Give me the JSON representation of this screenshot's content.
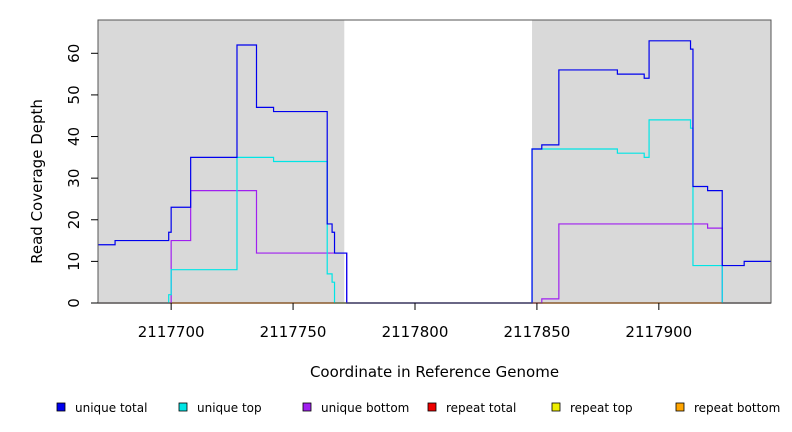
{
  "chart_data": {
    "type": "line",
    "step": true,
    "xlabel": "Coordinate in Reference Genome",
    "ylabel": "Read Coverage Depth",
    "xlim": [
      2117670,
      2117946
    ],
    "ylim": [
      0,
      68
    ],
    "x_ticks": [
      2117700,
      2117750,
      2117800,
      2117850,
      2117900
    ],
    "y_ticks": [
      0,
      10,
      20,
      30,
      40,
      50,
      60
    ],
    "grid": false,
    "shaded_regions": [
      {
        "x_start": 2117670,
        "x_end": 2117771,
        "color": "#d9d9d9"
      },
      {
        "x_start": 2117848,
        "x_end": 2117946,
        "color": "#d9d9d9"
      }
    ],
    "legend_position": "bottom",
    "series": [
      {
        "name": "unique total",
        "color": "#0000ee",
        "points": [
          [
            2117670,
            14
          ],
          [
            2117677,
            15
          ],
          [
            2117699,
            17
          ],
          [
            2117700,
            23
          ],
          [
            2117708,
            35
          ],
          [
            2117727,
            62
          ],
          [
            2117735,
            47
          ],
          [
            2117742,
            46
          ],
          [
            2117764,
            19
          ],
          [
            2117766,
            17
          ],
          [
            2117767,
            12
          ],
          [
            2117772,
            0
          ],
          [
            2117848,
            37
          ],
          [
            2117852,
            38
          ],
          [
            2117859,
            56
          ],
          [
            2117883,
            55
          ],
          [
            2117894,
            54
          ],
          [
            2117896,
            63
          ],
          [
            2117913,
            61
          ],
          [
            2117914,
            28
          ],
          [
            2117920,
            27
          ],
          [
            2117926,
            9
          ],
          [
            2117935,
            10
          ],
          [
            2117946,
            10
          ]
        ]
      },
      {
        "name": "unique top",
        "color": "#00e5e5",
        "points": [
          [
            2117670,
            0
          ],
          [
            2117699,
            2
          ],
          [
            2117700,
            8
          ],
          [
            2117727,
            35
          ],
          [
            2117742,
            34
          ],
          [
            2117764,
            7
          ],
          [
            2117766,
            5
          ],
          [
            2117767,
            0
          ],
          [
            2117848,
            37
          ],
          [
            2117883,
            36
          ],
          [
            2117894,
            35
          ],
          [
            2117896,
            44
          ],
          [
            2117913,
            42
          ],
          [
            2117914,
            9
          ],
          [
            2117926,
            0
          ],
          [
            2117946,
            0
          ]
        ]
      },
      {
        "name": "unique bottom",
        "color": "#a020f0",
        "points": [
          [
            2117670,
            0
          ],
          [
            2117700,
            15
          ],
          [
            2117708,
            27
          ],
          [
            2117735,
            12
          ],
          [
            2117772,
            0
          ],
          [
            2117852,
            1
          ],
          [
            2117859,
            19
          ],
          [
            2117920,
            18
          ],
          [
            2117926,
            0
          ],
          [
            2117946,
            0
          ]
        ]
      },
      {
        "name": "repeat total",
        "color": "#ee0000",
        "points": [
          [
            2117670,
            0
          ],
          [
            2117946,
            0
          ]
        ]
      },
      {
        "name": "repeat top",
        "color": "#eeee00",
        "points": [
          [
            2117670,
            0
          ],
          [
            2117946,
            0
          ]
        ]
      },
      {
        "name": "repeat bottom",
        "color": "#ffa500",
        "points": [
          [
            2117670,
            0
          ],
          [
            2117946,
            0
          ]
        ]
      }
    ]
  }
}
